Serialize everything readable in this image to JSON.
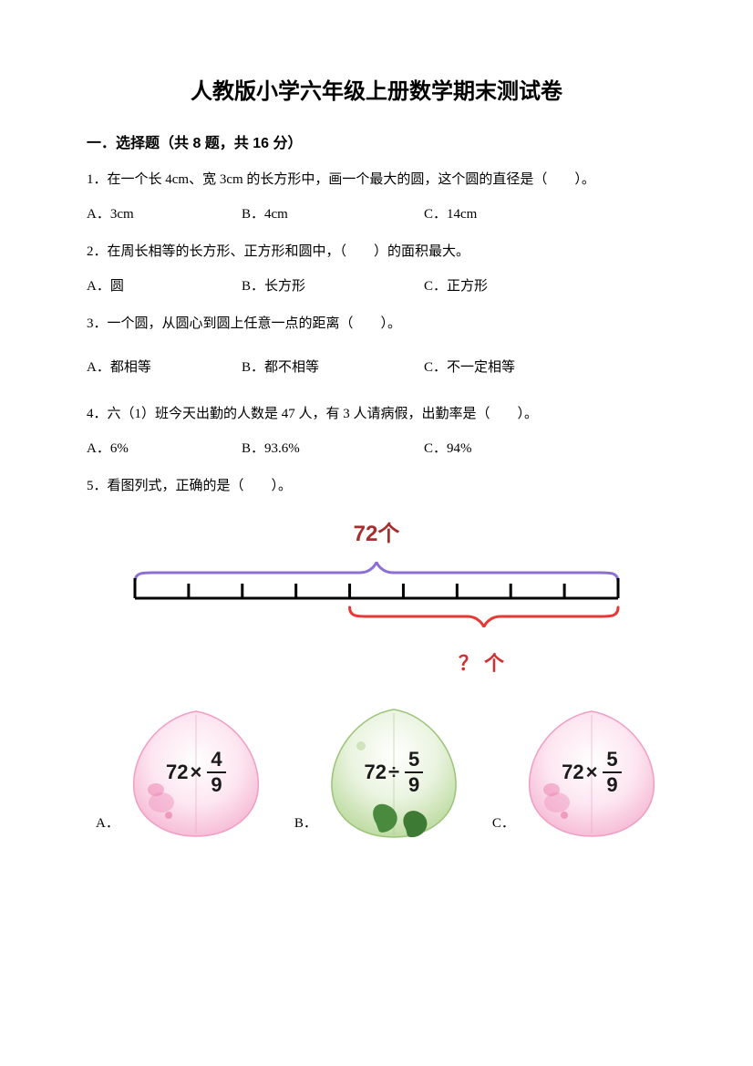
{
  "title": "人教版小学六年级上册数学期末测试卷",
  "section1": {
    "header": "一．选择题（共 8 题，共 16 分）"
  },
  "q1": {
    "text": "1．在一个长 4cm、宽 3cm 的长方形中，画一个最大的圆，这个圆的直径是（　　）。",
    "a": "A．3cm",
    "b": "B．4cm",
    "c": "C．14cm"
  },
  "q2": {
    "text": "2．在周长相等的长方形、正方形和圆中，（　　）的面积最大。",
    "a": "A．圆",
    "b": "B．长方形",
    "c": "C．正方形"
  },
  "q3": {
    "text": "3．一个圆，从圆心到圆上任意一点的距离（　　）。",
    "a": "A．都相等",
    "b": "B．都不相等",
    "c": "C．不一定相等"
  },
  "q4": {
    "text": "4．六（1）班今天出勤的人数是 47 人，有 3 人请病假，出勤率是（　　）。",
    "a": "A．6%",
    "b": "B．93.6%",
    "c": "C．94%"
  },
  "q5": {
    "text": "5．看图列式，正确的是（　　）。"
  },
  "diagram": {
    "top_label": "72个",
    "bottom_label": "？ 个",
    "total_ticks": 9,
    "red_start_tick": 4,
    "colors": {
      "top_brace": "#8b6fd6",
      "bottom_brace": "#e53935",
      "tick": "#000000",
      "top_label_color": "#a62e2e",
      "bottom_label_color": "#d12f2f"
    }
  },
  "answers": {
    "a": {
      "letter": "A．",
      "whole": "72",
      "op": "×",
      "num": "4",
      "den": "9",
      "leaf_type": "pink"
    },
    "b": {
      "letter": "B．",
      "whole": "72",
      "op": "÷",
      "num": "5",
      "den": "9",
      "leaf_type": "green"
    },
    "c": {
      "letter": "C．",
      "whole": "72",
      "op": "×",
      "num": "5",
      "den": "9",
      "leaf_type": "pink"
    }
  }
}
